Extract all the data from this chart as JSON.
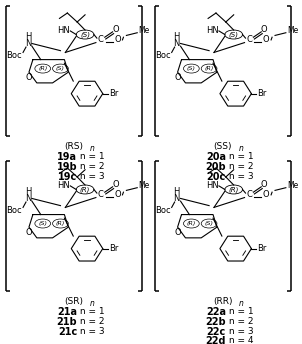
{
  "background_color": "#ffffff",
  "panels": [
    {
      "ox": 2,
      "oy": 2,
      "val_stereo": "S",
      "ring_stereo_left": "R",
      "ring_stereo_right": "S",
      "label_stereo": "RS",
      "compounds": [
        {
          "bold": "19a",
          "text": " n = 1"
        },
        {
          "bold": "19b",
          "text": " n = 2"
        },
        {
          "bold": "19c",
          "text": " n = 3"
        }
      ]
    },
    {
      "ox": 153,
      "oy": 2,
      "val_stereo": "S",
      "ring_stereo_left": "S",
      "ring_stereo_right": "R",
      "label_stereo": "SS",
      "compounds": [
        {
          "bold": "20a",
          "text": " n = 1"
        },
        {
          "bold": "20b",
          "text": " n = 2"
        },
        {
          "bold": "20c",
          "text": " n = 3"
        }
      ]
    },
    {
      "ox": 2,
      "oy": 175,
      "val_stereo": "R",
      "ring_stereo_left": "S",
      "ring_stereo_right": "R",
      "label_stereo": "SR",
      "compounds": [
        {
          "bold": "21a",
          "text": " n = 1"
        },
        {
          "bold": "21b",
          "text": " n = 2"
        },
        {
          "bold": "21c",
          "text": " n = 3"
        }
      ]
    },
    {
      "ox": 153,
      "oy": 175,
      "val_stereo": "R",
      "ring_stereo_left": "R",
      "ring_stereo_right": "S",
      "label_stereo": "RR",
      "compounds": [
        {
          "bold": "22a",
          "text": " n = 1"
        },
        {
          "bold": "22b",
          "text": " n = 2"
        },
        {
          "bold": "22c",
          "text": " n = 3"
        },
        {
          "bold": "22d",
          "text": " n = 4"
        }
      ]
    }
  ]
}
